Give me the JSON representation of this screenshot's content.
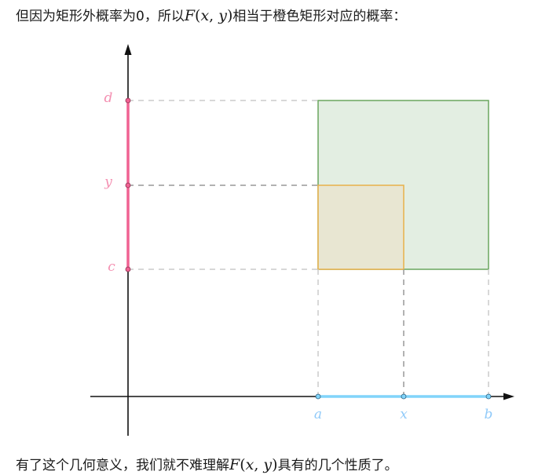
{
  "text": {
    "top": {
      "before": "但因为矩形外概率为0，所以",
      "math_func": "F",
      "math_open": "(",
      "math_x": "x",
      "math_comma": ", ",
      "math_y": "y",
      "math_close": ")",
      "after": "相当于橙色矩形对应的概率："
    },
    "bottom": {
      "before": "有了这个几何意义，我们就不难理解",
      "math_func": "F",
      "math_open": "(",
      "math_x": "x",
      "math_comma": ", ",
      "math_y": "y",
      "math_close": ")",
      "after": "具有的几个性质了。"
    }
  },
  "diagram": {
    "y_labels": {
      "d": "d",
      "y": "y",
      "c": "c"
    },
    "x_labels": {
      "a": "a",
      "x": "x",
      "b": "b"
    },
    "colors": {
      "axis": "#111111",
      "pink": "#f06292",
      "pink_label": "#f48fb1",
      "blue": "#81d4fa",
      "blue_label": "#90caf9",
      "green_stroke": "#6aa65e",
      "green_fill": "#e3eee2",
      "orange_stroke": "#e8b04a",
      "orange_fill": "#e8e6d2",
      "dash_light": "#cccccc",
      "dash_dark": "#999999"
    }
  }
}
